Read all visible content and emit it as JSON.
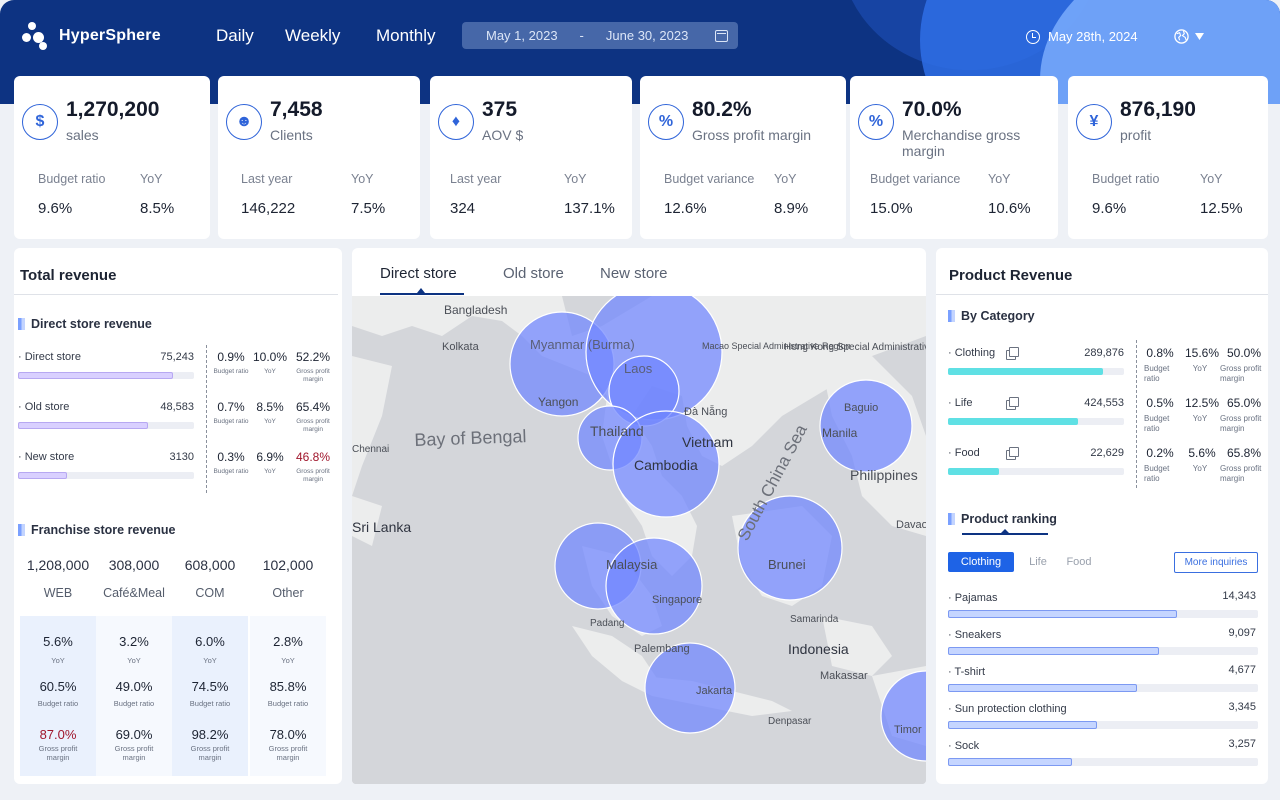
{
  "app": {
    "name": "HyperSphere"
  },
  "nav": {
    "daily": "Daily",
    "weekly": "Weekly",
    "monthly": "Monthly"
  },
  "date_range": {
    "start": "May 1, 2023",
    "separator": "-",
    "end": "June 30, 2023"
  },
  "today": "May 28th, 2024",
  "kpis": [
    {
      "icon": "dollar-icon",
      "value": "1,270,200",
      "label": "sales",
      "m1_label": "Budget ratio",
      "m1_value": "9.6%",
      "m2_label": "YoY",
      "m2_value": "8.5%"
    },
    {
      "icon": "users-icon",
      "value": "7,458",
      "label": "Clients",
      "m1_label": "Last year",
      "m1_value": "146,222",
      "m2_label": "YoY",
      "m2_value": "7.5%"
    },
    {
      "icon": "tag-icon",
      "value": "375",
      "label": "AOV $",
      "m1_label": "Last year",
      "m1_value": "324",
      "m2_label": "YoY",
      "m2_value": "137.1%"
    },
    {
      "icon": "percent-icon",
      "value": "80.2%",
      "label": "Gross profit margin",
      "m1_label": "Budget variance",
      "m1_value": "12.6%",
      "m2_label": "YoY",
      "m2_value": "8.9%"
    },
    {
      "icon": "percent-icon",
      "value": "70.0%",
      "label": "Merchandise gross margin",
      "m1_label": "Budget variance",
      "m1_value": "15.0%",
      "m2_label": "YoY",
      "m2_value": "10.6%"
    },
    {
      "icon": "money-bag-icon",
      "value": "876,190",
      "label": "profit",
      "m1_label": "Budget ratio",
      "m1_value": "9.6%",
      "m2_label": "YoY",
      "m2_value": "12.5%"
    }
  ],
  "total_revenue": {
    "title": "Total revenue",
    "direct_title": "Direct store revenue",
    "direct_rows": [
      {
        "name": "· Direct store",
        "value": "75,243",
        "fill": 0.88,
        "budget": "0.9%",
        "yoy": "10.0%",
        "gpm": "52.2%",
        "gpm_color": "#1d2433"
      },
      {
        "name": "· Old store",
        "value": "48,583",
        "fill": 0.74,
        "budget": "0.7%",
        "yoy": "8.5%",
        "gpm": "65.4%",
        "gpm_color": "#1d2433"
      },
      {
        "name": "· New store",
        "value": "3130",
        "fill": 0.28,
        "budget": "0.3%",
        "yoy": "6.9%",
        "gpm": "46.8%",
        "gpm_color": "#a0162c"
      }
    ],
    "metric_labels": {
      "budget": "Budget ratio",
      "yoy": "YoY",
      "gpm": "Gross profit margin"
    },
    "franchise_title": "Franchise store revenue",
    "franchise": [
      {
        "value": "1,208,000",
        "name": "WEB",
        "yoy": "5.6%",
        "budget": "60.5%",
        "gpm": "87.0%",
        "gpm_color": "#a0162c"
      },
      {
        "value": "308,000",
        "name": "Café&Meal",
        "yoy": "3.2%",
        "budget": "49.0%",
        "gpm": "69.0%",
        "gpm_color": "#1d2433"
      },
      {
        "value": "608,000",
        "name": "COM",
        "yoy": "6.0%",
        "budget": "74.5%",
        "gpm": "98.2%",
        "gpm_color": "#1d2433"
      },
      {
        "value": "102,000",
        "name": "Other",
        "yoy": "2.8%",
        "budget": "85.8%",
        "gpm": "78.0%",
        "gpm_color": "#1d2433"
      }
    ],
    "f_labels": {
      "yoy": "YoY",
      "budget": "Budget ratio",
      "gpm": "Gross profit margin"
    }
  },
  "map": {
    "tabs": [
      "Direct store",
      "Old store",
      "New store"
    ],
    "labels": [
      "Bangladesh",
      "Kolkata",
      "Myanmar (Burma)",
      "Yangon",
      "Laos",
      "Macao Special Administrative Region",
      "Hong Kong Special Administrative Region",
      "Bay of Bengal",
      "Thailand",
      "Đà Nẵng",
      "Vietnam",
      "Cambodia",
      "Baguio",
      "Manila",
      "Philippines",
      "South China Sea",
      "Chennai",
      "Sri Lanka",
      "Malaysia",
      "Singapore",
      "Padang",
      "Palembang",
      "Brunei",
      "Samarinda",
      "Indonesia",
      "Makassar",
      "Jakarta",
      "Denpasar",
      "Davao",
      "Timor"
    ]
  },
  "product_revenue": {
    "title": "Product Revenue",
    "by_category_title": "By Category",
    "categories": [
      {
        "name": "· Clothing",
        "value": "289,876",
        "fill": 0.88,
        "budget": "0.8%",
        "yoy": "15.6%",
        "gpm": "50.0%"
      },
      {
        "name": "· Life",
        "value": "424,553",
        "fill": 0.74,
        "budget": "0.5%",
        "yoy": "12.5%",
        "gpm": "65.0%"
      },
      {
        "name": "· Food",
        "value": "22,629",
        "fill": 0.29,
        "budget": "0.2%",
        "yoy": "5.6%",
        "gpm": "65.8%"
      }
    ],
    "metric_labels": {
      "budget": "Budget ratio",
      "yoy": "YoY",
      "gpm": "Gross profit margin"
    },
    "ranking_title": "Product ranking",
    "ranking_tabs": [
      "Clothing",
      "Life",
      "Food"
    ],
    "more_label": "More inquiries",
    "ranking": [
      {
        "name": "· Pajamas",
        "value": "14,343",
        "fill": 0.74
      },
      {
        "name": "· Sneakers",
        "value": "9,097",
        "fill": 0.68
      },
      {
        "name": "· T-shirt",
        "value": "4,677",
        "fill": 0.61
      },
      {
        "name": "· Sun protection clothing",
        "value": "3,345",
        "fill": 0.48
      },
      {
        "name": "· Sock",
        "value": "3,257",
        "fill": 0.4
      }
    ]
  },
  "colors": {
    "primary": "#0d3382",
    "accent": "#2f64d9",
    "direct_bar": "#d9d0ff",
    "category_bar": "#5fe0e4",
    "ranking_bar": "#c5d5ff",
    "bubble": "#6f85ff",
    "highlight": "#a0162c"
  }
}
